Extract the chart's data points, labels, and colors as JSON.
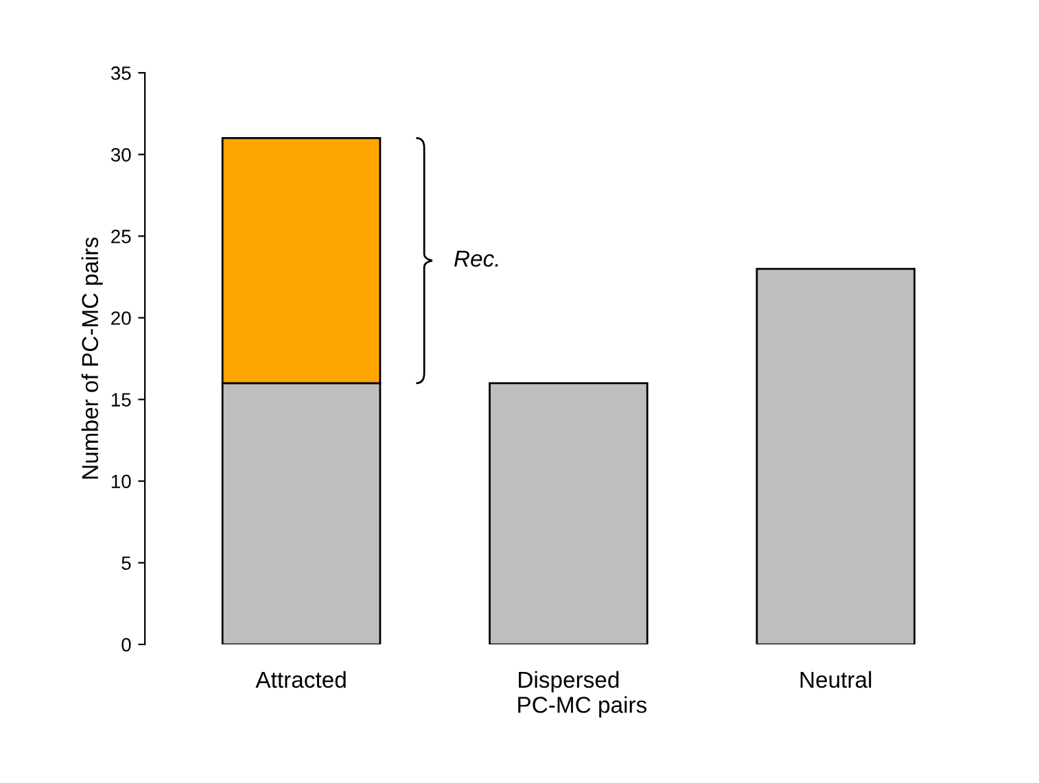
{
  "chart_data": {
    "type": "bar",
    "stacked": true,
    "ylabel": "Number of PC-MC pairs",
    "xlabel": "PC-MC pairs",
    "categories": [
      "Attracted",
      "Dispersed",
      "Neutral"
    ],
    "series": [
      {
        "color": "#bebebe",
        "values": [
          16,
          16,
          23
        ]
      },
      {
        "color": "#ffa500",
        "values": [
          15,
          0,
          0
        ]
      }
    ],
    "annotations": [
      "Rec."
    ],
    "ylim": [
      0,
      35
    ],
    "yticks": [
      0,
      5,
      10,
      15,
      20,
      25,
      30,
      35
    ],
    "grid": false,
    "legend": false
  }
}
